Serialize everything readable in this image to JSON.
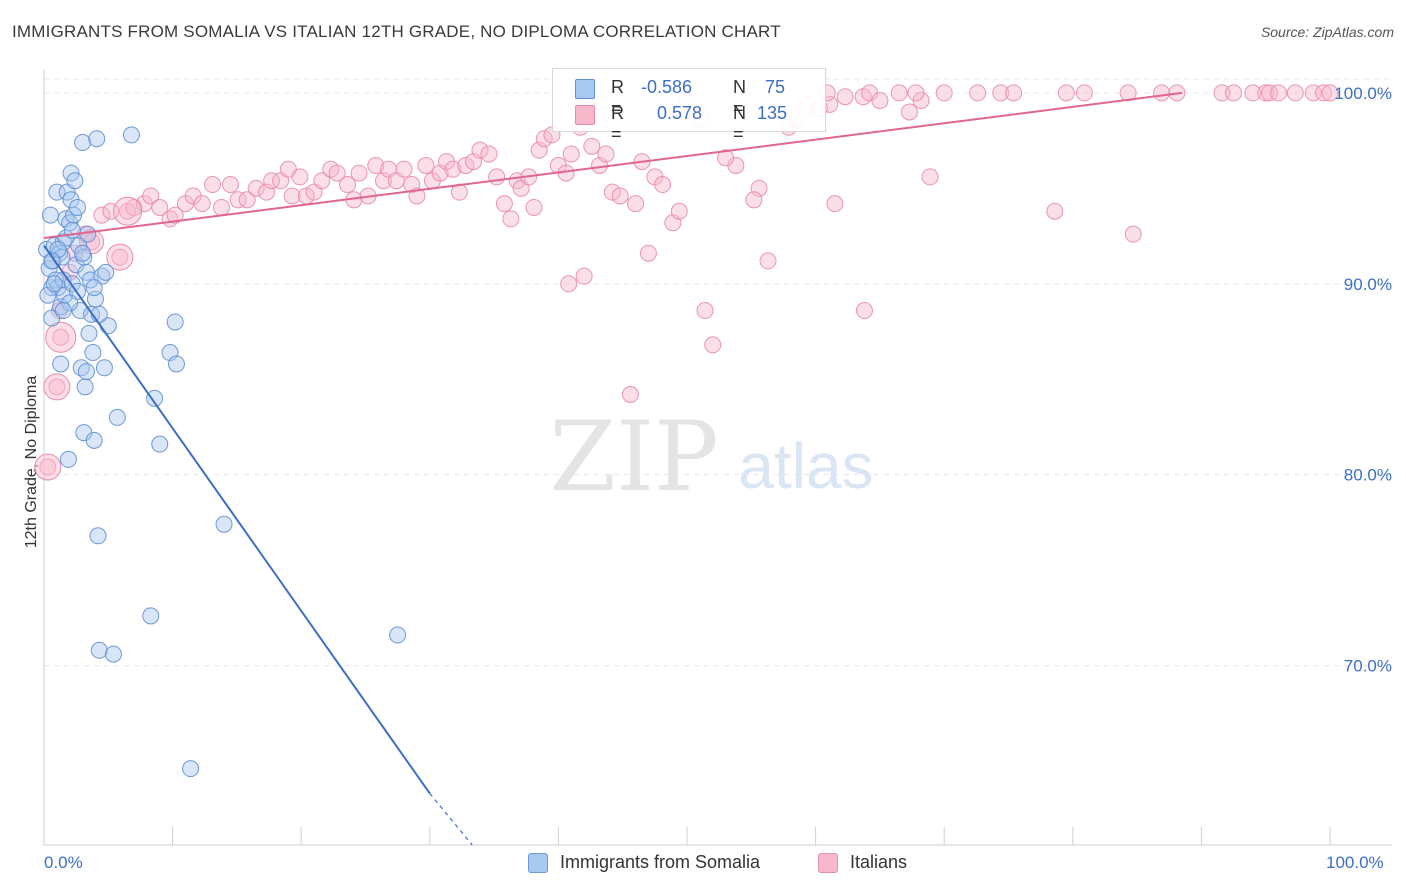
{
  "title": "IMMIGRANTS FROM SOMALIA VS ITALIAN 12TH GRADE, NO DIPLOMA CORRELATION CHART",
  "source": "Source: ZipAtlas.com",
  "watermark": {
    "zip": "ZIP",
    "atlas": "atlas"
  },
  "colors": {
    "blue": "#3c6fc4",
    "blue_fill": "#a9c8f0",
    "pink": "#e06590",
    "pink_fill": "#f7b8cb",
    "axis_text": "#3c6fc4"
  },
  "stats": {
    "blue": {
      "r_label": "R =",
      "r_value": "-0.586",
      "n_label": "N =",
      "n_value": "75"
    },
    "pink": {
      "r_label": "R =",
      "r_value": "0.578",
      "n_label": "N =",
      "n_value": "135"
    }
  },
  "legend": [
    {
      "label": "Immigrants from Somalia",
      "color": "#a9c8f0"
    },
    {
      "label": "Italians",
      "color": "#f7b8cb"
    }
  ],
  "chart_data": {
    "type": "scatter",
    "title": "IMMIGRANTS FROM SOMALIA VS ITALIAN 12TH GRADE, NO DIPLOMA CORRELATION CHART",
    "xlabel": "",
    "ylabel": "12th Grade, No Diploma",
    "xlim": [
      0,
      100
    ],
    "ylim": [
      60.6,
      101.2
    ],
    "x_tick_labels": [
      "0.0%",
      "100.0%"
    ],
    "y_ticks": [
      70,
      80,
      90,
      100
    ],
    "y_tick_labels": [
      "70.0%",
      "80.0%",
      "90.0%",
      "100.0%"
    ],
    "grid": true,
    "legend_position": "bottom",
    "series": [
      {
        "name": "Immigrants from Somalia",
        "color": "#a9c8f0",
        "trend": {
          "x0": 0,
          "y0": 92.0,
          "x1": 30,
          "y1": 63.3,
          "dashed_to_x": 33.3,
          "dashed_to_y": 60.6
        },
        "points": [
          [
            0.2,
            91.8
          ],
          [
            0.4,
            90.8
          ],
          [
            0.5,
            93.6
          ],
          [
            0.6,
            89.8
          ],
          [
            0.6,
            88.2
          ],
          [
            0.7,
            91.2
          ],
          [
            0.8,
            92.0
          ],
          [
            0.9,
            90.2
          ],
          [
            1.0,
            94.8
          ],
          [
            1.1,
            89.8
          ],
          [
            1.2,
            91.6
          ],
          [
            1.3,
            88.8
          ],
          [
            1.3,
            85.8
          ],
          [
            1.4,
            91.4
          ],
          [
            1.5,
            90.2
          ],
          [
            1.5,
            92.2
          ],
          [
            1.6,
            89.4
          ],
          [
            1.7,
            93.4
          ],
          [
            1.8,
            94.8
          ],
          [
            1.9,
            80.8
          ],
          [
            2.0,
            93.2
          ],
          [
            2.1,
            95.8
          ],
          [
            2.1,
            94.4
          ],
          [
            2.2,
            90.0
          ],
          [
            2.3,
            93.6
          ],
          [
            2.4,
            95.4
          ],
          [
            2.5,
            91.0
          ],
          [
            2.6,
            89.6
          ],
          [
            2.7,
            92.0
          ],
          [
            2.8,
            88.6
          ],
          [
            2.9,
            85.6
          ],
          [
            3.0,
            97.4
          ],
          [
            3.1,
            91.4
          ],
          [
            3.1,
            82.2
          ],
          [
            3.2,
            84.6
          ],
          [
            3.3,
            90.6
          ],
          [
            3.3,
            85.4
          ],
          [
            3.4,
            92.6
          ],
          [
            3.5,
            87.4
          ],
          [
            3.6,
            90.2
          ],
          [
            3.7,
            88.4
          ],
          [
            3.8,
            86.4
          ],
          [
            3.9,
            81.8
          ],
          [
            4.0,
            89.2
          ],
          [
            4.1,
            97.6
          ],
          [
            4.2,
            76.8
          ],
          [
            4.3,
            70.8
          ],
          [
            4.5,
            90.4
          ],
          [
            4.7,
            85.6
          ],
          [
            5.0,
            87.8
          ],
          [
            5.4,
            70.6
          ],
          [
            5.7,
            83.0
          ],
          [
            6.8,
            97.8
          ],
          [
            8.3,
            72.6
          ],
          [
            8.6,
            84.0
          ],
          [
            9.0,
            81.6
          ],
          [
            9.8,
            86.4
          ],
          [
            10.2,
            88.0
          ],
          [
            10.3,
            85.8
          ],
          [
            11.4,
            64.6
          ],
          [
            14.0,
            77.4
          ],
          [
            27.5,
            71.6
          ],
          [
            0.3,
            89.4
          ],
          [
            0.8,
            90.0
          ],
          [
            1.7,
            92.4
          ],
          [
            2.6,
            94.0
          ],
          [
            3.9,
            89.8
          ],
          [
            4.3,
            88.4
          ],
          [
            1.1,
            91.8
          ],
          [
            2.0,
            89.0
          ],
          [
            3.0,
            91.6
          ],
          [
            4.8,
            90.6
          ],
          [
            0.6,
            91.2
          ],
          [
            1.5,
            88.6
          ],
          [
            2.2,
            92.8
          ]
        ]
      },
      {
        "name": "Italians",
        "color": "#f7b8cb",
        "trend": {
          "x0": 0,
          "y0": 92.4,
          "x1": 88.5,
          "y1": 100.0
        },
        "points": [
          [
            0.3,
            80.4
          ],
          [
            1.0,
            84.6
          ],
          [
            1.2,
            88.6
          ],
          [
            1.3,
            87.2
          ],
          [
            2.0,
            90.6
          ],
          [
            2.4,
            91.6
          ],
          [
            3.2,
            92.6
          ],
          [
            3.7,
            92.2
          ],
          [
            4.5,
            93.6
          ],
          [
            5.2,
            93.8
          ],
          [
            5.9,
            91.4
          ],
          [
            6.5,
            93.8
          ],
          [
            7.0,
            94.0
          ],
          [
            7.8,
            94.2
          ],
          [
            8.3,
            94.6
          ],
          [
            9.0,
            94.0
          ],
          [
            9.8,
            93.4
          ],
          [
            10.2,
            93.6
          ],
          [
            11.0,
            94.2
          ],
          [
            11.6,
            94.6
          ],
          [
            12.3,
            94.2
          ],
          [
            13.1,
            95.2
          ],
          [
            13.8,
            94.0
          ],
          [
            14.5,
            95.2
          ],
          [
            15.1,
            94.4
          ],
          [
            15.8,
            94.4
          ],
          [
            16.5,
            95.0
          ],
          [
            17.3,
            94.8
          ],
          [
            17.7,
            95.4
          ],
          [
            18.4,
            95.4
          ],
          [
            19.0,
            96.0
          ],
          [
            19.3,
            94.6
          ],
          [
            19.9,
            95.6
          ],
          [
            20.4,
            94.6
          ],
          [
            21.0,
            94.8
          ],
          [
            21.6,
            95.4
          ],
          [
            22.3,
            96.0
          ],
          [
            22.8,
            95.8
          ],
          [
            23.6,
            95.2
          ],
          [
            24.1,
            94.4
          ],
          [
            24.5,
            95.8
          ],
          [
            25.2,
            94.6
          ],
          [
            25.8,
            96.2
          ],
          [
            26.4,
            95.4
          ],
          [
            26.8,
            96.0
          ],
          [
            27.4,
            95.4
          ],
          [
            28.0,
            96.0
          ],
          [
            28.6,
            95.2
          ],
          [
            29.0,
            94.6
          ],
          [
            29.7,
            96.2
          ],
          [
            30.2,
            95.4
          ],
          [
            30.8,
            95.8
          ],
          [
            31.3,
            96.4
          ],
          [
            31.8,
            96.0
          ],
          [
            32.3,
            94.8
          ],
          [
            32.8,
            96.2
          ],
          [
            33.4,
            96.4
          ],
          [
            33.9,
            97.0
          ],
          [
            34.6,
            96.8
          ],
          [
            35.2,
            95.6
          ],
          [
            35.8,
            94.2
          ],
          [
            36.3,
            93.4
          ],
          [
            36.8,
            95.4
          ],
          [
            37.1,
            95.0
          ],
          [
            37.7,
            95.6
          ],
          [
            38.1,
            94.0
          ],
          [
            38.5,
            97.0
          ],
          [
            38.9,
            97.6
          ],
          [
            39.5,
            97.8
          ],
          [
            40.0,
            96.2
          ],
          [
            40.6,
            95.8
          ],
          [
            41.0,
            96.8
          ],
          [
            41.7,
            98.2
          ],
          [
            42.0,
            90.4
          ],
          [
            42.6,
            97.2
          ],
          [
            43.2,
            96.2
          ],
          [
            43.7,
            96.8
          ],
          [
            44.2,
            94.8
          ],
          [
            44.8,
            94.6
          ],
          [
            45.6,
            84.2
          ],
          [
            46.0,
            94.2
          ],
          [
            46.5,
            96.4
          ],
          [
            47.0,
            91.6
          ],
          [
            47.5,
            95.6
          ],
          [
            48.1,
            95.2
          ],
          [
            48.9,
            93.2
          ],
          [
            49.4,
            93.8
          ],
          [
            50.0,
            99.6
          ],
          [
            51.1,
            98.6
          ],
          [
            52.0,
            86.8
          ],
          [
            53.8,
            96.2
          ],
          [
            55.6,
            95.0
          ],
          [
            56.3,
            91.2
          ],
          [
            57.9,
            98.2
          ],
          [
            58.5,
            98.6
          ],
          [
            59.4,
            99.4
          ],
          [
            60.3,
            99.2
          ],
          [
            61.1,
            99.4
          ],
          [
            61.5,
            94.2
          ],
          [
            62.3,
            99.8
          ],
          [
            63.7,
            99.8
          ],
          [
            64.2,
            100.0
          ],
          [
            65.0,
            99.6
          ],
          [
            66.5,
            100.0
          ],
          [
            67.3,
            99.0
          ],
          [
            68.2,
            99.6
          ],
          [
            68.9,
            95.6
          ],
          [
            70.0,
            100.0
          ],
          [
            72.6,
            100.0
          ],
          [
            74.4,
            100.0
          ],
          [
            75.4,
            100.0
          ],
          [
            78.6,
            93.8
          ],
          [
            79.5,
            100.0
          ],
          [
            80.9,
            100.0
          ],
          [
            84.3,
            100.0
          ],
          [
            84.7,
            92.6
          ],
          [
            86.9,
            100.0
          ],
          [
            88.1,
            100.0
          ],
          [
            91.6,
            100.0
          ],
          [
            92.5,
            100.0
          ],
          [
            94.0,
            100.0
          ],
          [
            95.0,
            100.0
          ],
          [
            95.3,
            100.0
          ],
          [
            96.0,
            100.0
          ],
          [
            97.3,
            100.0
          ],
          [
            98.7,
            100.0
          ],
          [
            99.5,
            100.0
          ],
          [
            100.0,
            100.0
          ],
          [
            40.8,
            90.0
          ],
          [
            51.4,
            88.6
          ],
          [
            55.2,
            94.4
          ],
          [
            63.8,
            88.6
          ],
          [
            53.0,
            96.6
          ],
          [
            60.9,
            100.0
          ],
          [
            67.8,
            100.0
          ]
        ]
      }
    ]
  }
}
